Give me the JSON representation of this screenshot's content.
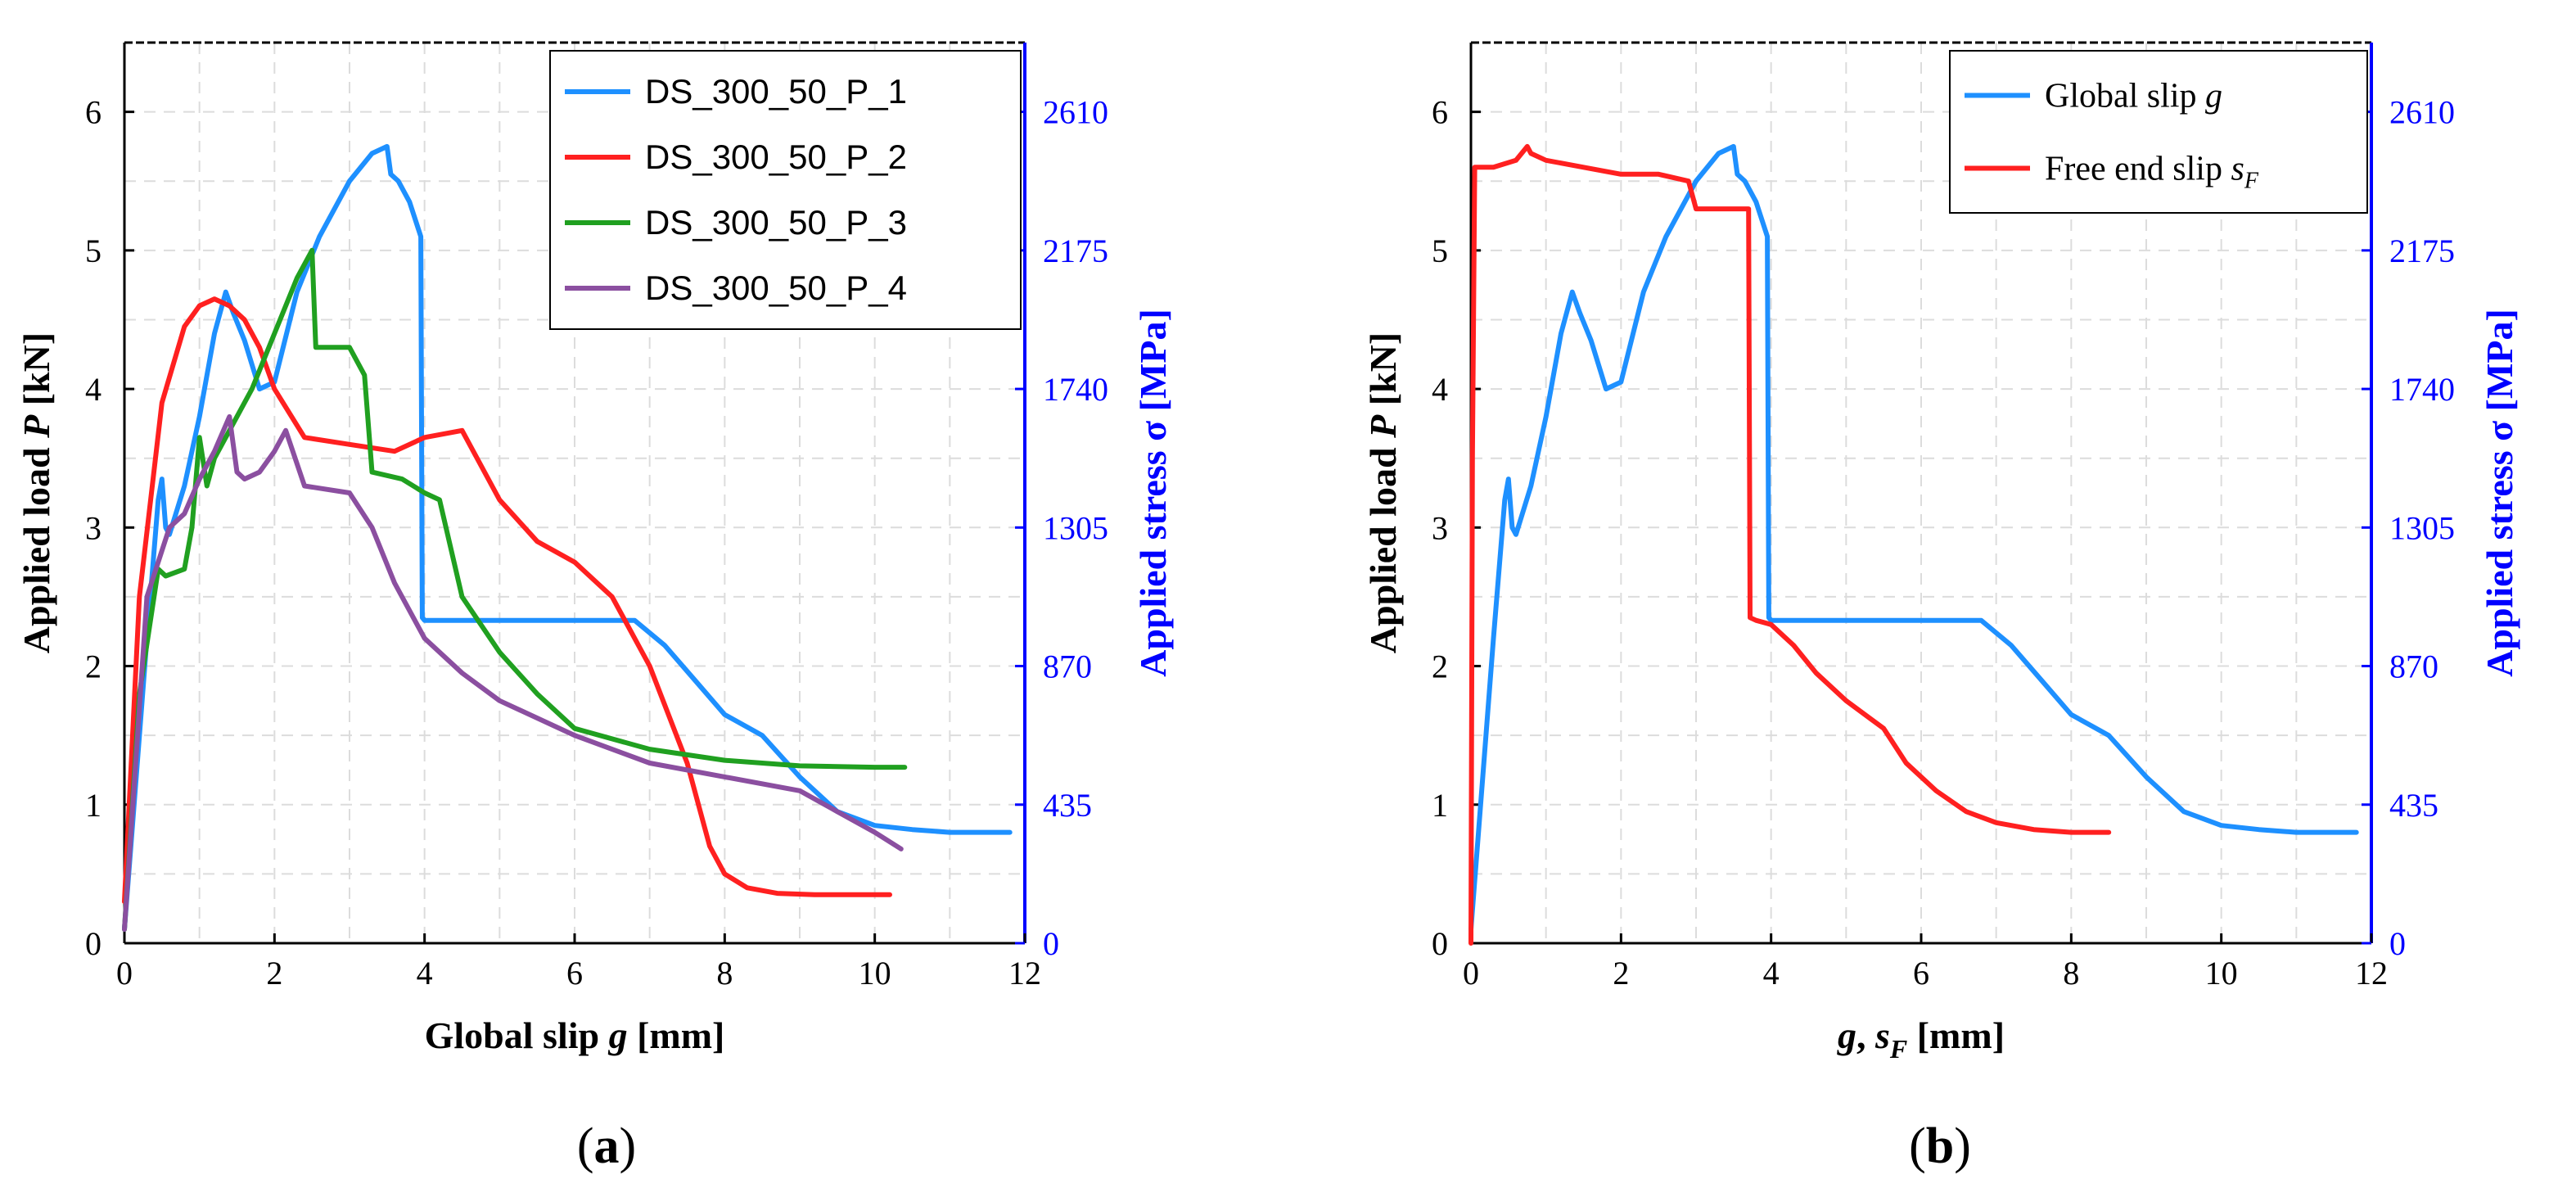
{
  "chart_data": [
    {
      "id": "a",
      "type": "line",
      "panel_label": "a",
      "xlabel": "Global slip g [mm]",
      "xlabel_parts": [
        "Global slip ",
        "g",
        " [mm]"
      ],
      "ylabel": "Applied load P [kN]",
      "ylabel_parts": [
        "Applied load ",
        "P",
        " [kN]"
      ],
      "y2label": "Applied stress σ [MPa]",
      "xlim": [
        0,
        12
      ],
      "ylim": [
        0,
        6.5
      ],
      "x_ticks": [
        0,
        2,
        4,
        6,
        8,
        10,
        12
      ],
      "y_ticks": [
        0,
        1,
        2,
        3,
        4,
        5,
        6
      ],
      "y2_ticks": [
        0,
        435,
        870,
        1305,
        1740,
        2175,
        2610
      ],
      "grid": true,
      "legend_position": "top-right",
      "series": [
        {
          "name": "DS_300_50_P_1",
          "color": "#1e90ff",
          "x": [
            0,
            0.1,
            0.3,
            0.45,
            0.5,
            0.55,
            0.6,
            0.8,
            1.0,
            1.2,
            1.35,
            1.45,
            1.6,
            1.8,
            2.0,
            2.3,
            2.6,
            3.0,
            3.3,
            3.5,
            3.55,
            3.65,
            3.8,
            3.95,
            3.97,
            4.0,
            5.0,
            6.0,
            6.8,
            7.2,
            7.6,
            8.0,
            8.5,
            9.0,
            9.5,
            10.0,
            10.5,
            11.0,
            11.8
          ],
          "y": [
            0.1,
            0.8,
            2.2,
            3.2,
            3.35,
            3.0,
            2.95,
            3.3,
            3.8,
            4.4,
            4.7,
            4.55,
            4.35,
            4.0,
            4.05,
            4.7,
            5.1,
            5.5,
            5.7,
            5.75,
            5.55,
            5.5,
            5.35,
            5.1,
            2.35,
            2.33,
            2.33,
            2.33,
            2.33,
            2.15,
            1.9,
            1.65,
            1.5,
            1.2,
            0.95,
            0.85,
            0.82,
            0.8,
            0.8
          ]
        },
        {
          "name": "DS_300_50_P_2",
          "color": "#ff2020",
          "x": [
            0,
            0.2,
            0.5,
            0.8,
            1.0,
            1.2,
            1.4,
            1.6,
            1.8,
            2.0,
            2.4,
            3.0,
            3.6,
            4.0,
            4.5,
            5.0,
            5.5,
            6.0,
            6.5,
            7.0,
            7.5,
            7.8,
            8.0,
            8.3,
            8.7,
            9.2,
            10.2
          ],
          "y": [
            0.3,
            2.5,
            3.9,
            4.45,
            4.6,
            4.65,
            4.6,
            4.5,
            4.3,
            4.0,
            3.65,
            3.6,
            3.55,
            3.65,
            3.7,
            3.2,
            2.9,
            2.75,
            2.5,
            2.0,
            1.3,
            0.7,
            0.5,
            0.4,
            0.36,
            0.35,
            0.35
          ]
        },
        {
          "name": "DS_300_50_P_3",
          "color": "#20a020",
          "x": [
            0,
            0.2,
            0.45,
            0.55,
            0.8,
            0.9,
            1.0,
            1.1,
            1.2,
            1.4,
            1.7,
            2.0,
            2.3,
            2.5,
            2.55,
            2.7,
            3.0,
            3.2,
            3.3,
            3.7,
            4.0,
            4.2,
            4.5,
            5.0,
            5.5,
            6.0,
            7.0,
            8.0,
            9.0,
            10.0,
            10.4
          ],
          "y": [
            0.1,
            1.8,
            2.7,
            2.65,
            2.7,
            3.0,
            3.65,
            3.3,
            3.5,
            3.7,
            4.0,
            4.4,
            4.8,
            5.0,
            4.3,
            4.3,
            4.3,
            4.1,
            3.4,
            3.35,
            3.25,
            3.2,
            2.5,
            2.1,
            1.8,
            1.55,
            1.4,
            1.32,
            1.28,
            1.27,
            1.27
          ]
        },
        {
          "name": "DS_300_50_P_4",
          "color": "#8b4fa0",
          "x": [
            0,
            0.3,
            0.6,
            0.8,
            1.0,
            1.2,
            1.4,
            1.5,
            1.6,
            1.8,
            2.0,
            2.15,
            2.4,
            3.0,
            3.3,
            3.6,
            4.0,
            4.5,
            5.0,
            6.0,
            7.0,
            8.0,
            9.0,
            9.5,
            10.0,
            10.35
          ],
          "y": [
            0.1,
            2.5,
            3.0,
            3.1,
            3.35,
            3.55,
            3.8,
            3.4,
            3.35,
            3.4,
            3.55,
            3.7,
            3.3,
            3.25,
            3.0,
            2.6,
            2.2,
            1.95,
            1.75,
            1.5,
            1.3,
            1.2,
            1.1,
            0.95,
            0.8,
            0.68
          ]
        }
      ]
    },
    {
      "id": "b",
      "type": "line",
      "panel_label": "b",
      "xlabel": "g, sF [mm]",
      "xlabel_parts": [
        "g",
        ", ",
        "s",
        "F",
        "  [mm]"
      ],
      "ylabel": "Applied load P [kN]",
      "ylabel_parts": [
        "Applied load ",
        "P",
        " [kN]"
      ],
      "y2label": "Applied stress σ [MPa]",
      "xlim": [
        0,
        12
      ],
      "ylim": [
        0,
        6.5
      ],
      "x_ticks": [
        0,
        2,
        4,
        6,
        8,
        10,
        12
      ],
      "y_ticks": [
        0,
        1,
        2,
        3,
        4,
        5,
        6
      ],
      "y2_ticks": [
        0,
        435,
        870,
        1305,
        1740,
        2175,
        2610
      ],
      "grid": true,
      "legend_position": "top-right",
      "series": [
        {
          "name": "Global slip g",
          "name_parts": [
            "Global slip ",
            "g",
            ""
          ],
          "color": "#1e90ff",
          "x": [
            0,
            0.1,
            0.3,
            0.45,
            0.5,
            0.55,
            0.6,
            0.8,
            1.0,
            1.2,
            1.35,
            1.45,
            1.6,
            1.8,
            2.0,
            2.3,
            2.6,
            3.0,
            3.3,
            3.5,
            3.55,
            3.65,
            3.8,
            3.95,
            3.97,
            4.0,
            5.0,
            6.0,
            6.8,
            7.2,
            7.6,
            8.0,
            8.5,
            9.0,
            9.5,
            10.0,
            10.5,
            11.0,
            11.8
          ],
          "y": [
            0.1,
            0.8,
            2.2,
            3.2,
            3.35,
            3.0,
            2.95,
            3.3,
            3.8,
            4.4,
            4.7,
            4.55,
            4.35,
            4.0,
            4.05,
            4.7,
            5.1,
            5.5,
            5.7,
            5.75,
            5.55,
            5.5,
            5.35,
            5.1,
            2.35,
            2.33,
            2.33,
            2.33,
            2.33,
            2.15,
            1.9,
            1.65,
            1.5,
            1.2,
            0.95,
            0.85,
            0.82,
            0.8,
            0.8
          ]
        },
        {
          "name": "Free end slip sF",
          "name_parts": [
            "Free end slip ",
            "s",
            "F"
          ],
          "color": "#ff2020",
          "x": [
            0,
            0.02,
            0.05,
            0.3,
            0.6,
            0.75,
            0.8,
            1.0,
            1.5,
            2.0,
            2.5,
            2.9,
            3.0,
            3.5,
            3.7,
            3.72,
            3.8,
            4.0,
            4.3,
            4.6,
            5.0,
            5.5,
            5.8,
            6.2,
            6.6,
            7.0,
            7.5,
            8.0,
            8.5
          ],
          "y": [
            0.0,
            3.5,
            5.6,
            5.6,
            5.65,
            5.75,
            5.7,
            5.65,
            5.6,
            5.55,
            5.55,
            5.5,
            5.3,
            5.3,
            5.3,
            2.35,
            2.33,
            2.3,
            2.15,
            1.95,
            1.75,
            1.55,
            1.3,
            1.1,
            0.95,
            0.87,
            0.82,
            0.8,
            0.8
          ]
        }
      ]
    }
  ]
}
